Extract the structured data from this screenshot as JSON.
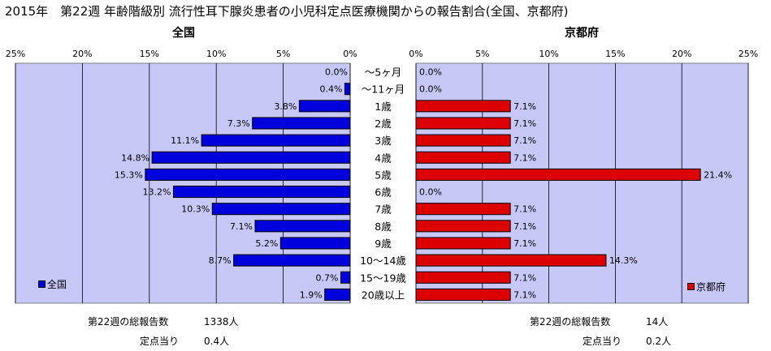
{
  "title": "2015年　第22週 年齢階級別 流行性耳下腺炎患者の小児科定点医療機関からの報告割合(全国、京都府)",
  "chart_data": {
    "type": "bar",
    "categories": [
      "～5ヶ月",
      "～11ヶ月",
      "1歳",
      "2歳",
      "3歳",
      "4歳",
      "5歳",
      "6歳",
      "7歳",
      "8歳",
      "9歳",
      "10～14歳",
      "15～19歳",
      "20歳以上"
    ],
    "xlim": [
      0,
      25
    ],
    "tick_labels": [
      "0%",
      "5%",
      "10%",
      "15%",
      "20%",
      "25%"
    ],
    "grid": true,
    "colors": {
      "national": "#0000dd",
      "kyoto": "#dd0000",
      "plot_bg": "#c8c8f8"
    },
    "series": [
      {
        "key": "national",
        "name": "全国",
        "panel_title": "全国",
        "values": [
          0.0,
          0.4,
          3.8,
          7.3,
          11.1,
          14.8,
          15.3,
          13.2,
          10.3,
          7.1,
          5.2,
          8.7,
          0.7,
          1.9
        ],
        "value_labels": [
          "0.0%",
          "0.4%",
          "3.8%",
          "7.3%",
          "11.1%",
          "14.8%",
          "15.3%",
          "13.2%",
          "10.3%",
          "7.1%",
          "5.2%",
          "8.7%",
          "0.7%",
          "1.9%"
        ],
        "legend_position": "bottom-left"
      },
      {
        "key": "kyoto",
        "name": "京都府",
        "panel_title": "京都府",
        "values": [
          0.0,
          0.0,
          7.1,
          7.1,
          7.1,
          7.1,
          21.4,
          0.0,
          7.1,
          7.1,
          7.1,
          14.3,
          7.1,
          7.1
        ],
        "value_labels": [
          "0.0%",
          "0.0%",
          "7.1%",
          "7.1%",
          "7.1%",
          "7.1%",
          "21.4%",
          "0.0%",
          "7.1%",
          "7.1%",
          "7.1%",
          "14.3%",
          "7.1%",
          "7.1%"
        ],
        "legend_position": "bottom-right"
      }
    ]
  },
  "stats": {
    "national": {
      "total_label": "第22週の総報告数",
      "total_value": "1338人",
      "per_label": "定点当り",
      "per_value": "0.4人"
    },
    "kyoto": {
      "total_label": "第22週の総報告数",
      "total_value": "14人",
      "per_label": "定点当り",
      "per_value": "0.2人"
    }
  }
}
